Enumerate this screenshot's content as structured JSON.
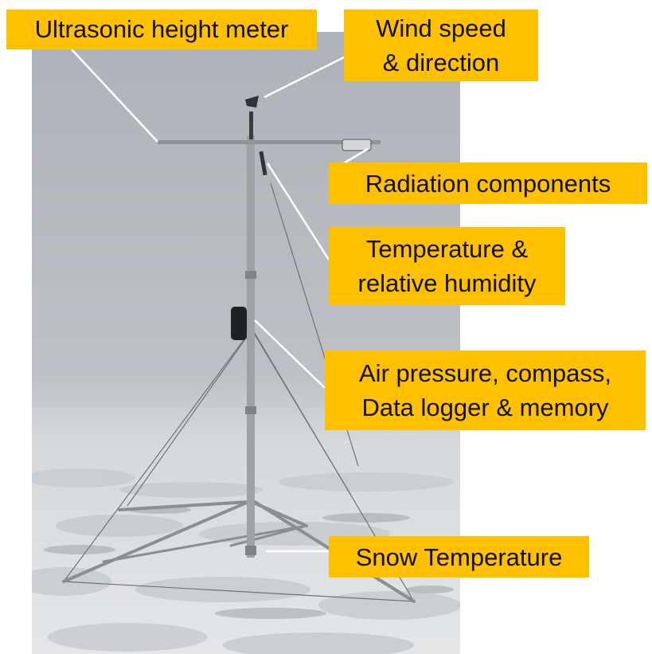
{
  "labels": {
    "ultrasonic": "Ultrasonic height meter",
    "wind": [
      "Wind speed",
      "& direction"
    ],
    "radiation": "Radiation components",
    "temperature": [
      "Temperature &",
      "relative humidity"
    ],
    "air": [
      "Air pressure, compass,",
      "Data logger & memory"
    ],
    "snow": "Snow Temperature"
  },
  "colors": {
    "label_background": "#FFC000",
    "leader_line": "#FFFFFF",
    "sky": "#B5BAC0",
    "snow": "#E6E8EA"
  }
}
